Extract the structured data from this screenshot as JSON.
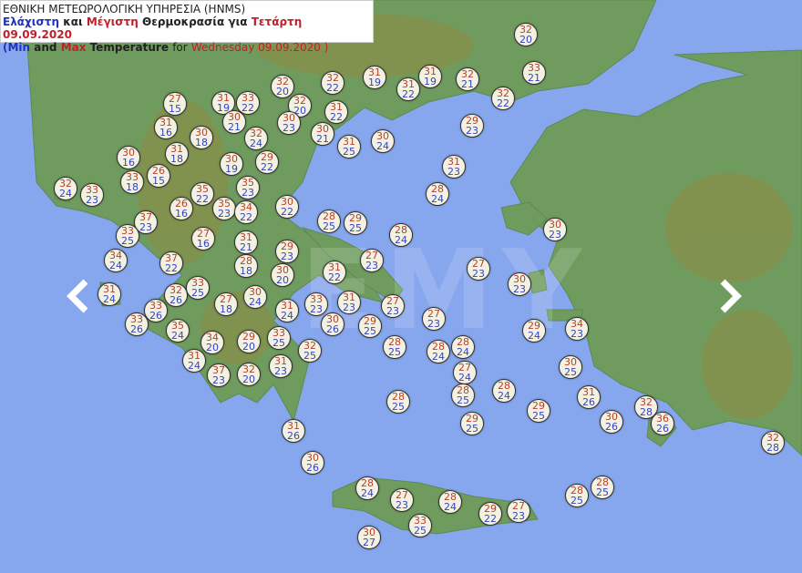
{
  "header": {
    "agency": "ΕΘΝΙΚΗ ΜΕΤΕΩΡΟΛΟΓΙΚΗ ΥΠΗΡΕΣΙΑ (HNMS)",
    "gr_min": "Ελάχιστη",
    "gr_and": "και",
    "gr_max": "Μέγιστη",
    "gr_temp": "Θερμοκρασία για",
    "gr_date": "Τετάρτη 09.09.2020",
    "en_open": "(",
    "en_min": "Min",
    "en_and": "and",
    "en_max": "Max",
    "en_temp": "Temperature",
    "en_for": "for",
    "en_date": "Wednesday 09.09.2020 )"
  },
  "watermark": "EMY",
  "colors": {
    "sea": "#86a6ee",
    "land": "#6f9c5e",
    "max_text": "#b8402c",
    "min_text": "#3544c2"
  },
  "navigation": {
    "prev_icon": "chevron-left-icon",
    "next_icon": "chevron-right-icon"
  },
  "markers": [
    {
      "max": "32",
      "min": "20"
    },
    {
      "max": "32",
      "min": "20"
    },
    {
      "max": "32",
      "min": "22"
    },
    {
      "max": "31",
      "min": "19"
    },
    {
      "max": "31",
      "min": "22"
    },
    {
      "max": "31",
      "min": "19"
    },
    {
      "max": "32",
      "min": "21"
    },
    {
      "max": "33",
      "min": "21"
    },
    {
      "max": "32",
      "min": "22"
    },
    {
      "max": "27",
      "min": "15"
    },
    {
      "max": "31",
      "min": "19"
    },
    {
      "max": "33",
      "min": "22"
    },
    {
      "max": "32",
      "min": "20"
    },
    {
      "max": "31",
      "min": "22"
    },
    {
      "max": "31",
      "min": "16"
    },
    {
      "max": "30",
      "min": "21"
    },
    {
      "max": "30",
      "min": "23"
    },
    {
      "max": "30",
      "min": "21"
    },
    {
      "max": "29",
      "min": "23"
    },
    {
      "max": "30",
      "min": "18"
    },
    {
      "max": "32",
      "min": "24"
    },
    {
      "max": "30",
      "min": "24"
    },
    {
      "max": "31",
      "min": "25"
    },
    {
      "max": "30",
      "min": "16"
    },
    {
      "max": "31",
      "min": "18"
    },
    {
      "max": "30",
      "min": "19"
    },
    {
      "max": "29",
      "min": "22"
    },
    {
      "max": "31",
      "min": "23"
    },
    {
      "max": "33",
      "min": "18"
    },
    {
      "max": "26",
      "min": "15"
    },
    {
      "max": "32",
      "min": "24"
    },
    {
      "max": "33",
      "min": "23"
    },
    {
      "max": "35",
      "min": "22"
    },
    {
      "max": "35",
      "min": "23"
    },
    {
      "max": "28",
      "min": "24"
    },
    {
      "max": "30",
      "min": "22"
    },
    {
      "max": "26",
      "min": "16"
    },
    {
      "max": "35",
      "min": "23"
    },
    {
      "max": "34",
      "min": "22"
    },
    {
      "max": "28",
      "min": "25"
    },
    {
      "max": "29",
      "min": "25"
    },
    {
      "max": "30",
      "min": "23"
    },
    {
      "max": "37",
      "min": "23"
    },
    {
      "max": "33",
      "min": "25"
    },
    {
      "max": "27",
      "min": "16"
    },
    {
      "max": "28",
      "min": "24"
    },
    {
      "max": "31",
      "min": "21"
    },
    {
      "max": "29",
      "min": "23"
    },
    {
      "max": "34",
      "min": "24"
    },
    {
      "max": "37",
      "min": "22"
    },
    {
      "max": "27",
      "min": "23"
    },
    {
      "max": "27",
      "min": "23"
    },
    {
      "max": "28",
      "min": "18"
    },
    {
      "max": "30",
      "min": "20"
    },
    {
      "max": "31",
      "min": "22"
    },
    {
      "max": "30",
      "min": "23"
    },
    {
      "max": "31",
      "min": "24"
    },
    {
      "max": "32",
      "min": "26"
    },
    {
      "max": "33",
      "min": "25"
    },
    {
      "max": "30",
      "min": "24"
    },
    {
      "max": "27",
      "min": "18"
    },
    {
      "max": "33",
      "min": "23"
    },
    {
      "max": "31",
      "min": "23"
    },
    {
      "max": "27",
      "min": "23"
    },
    {
      "max": "33",
      "min": "26"
    },
    {
      "max": "31",
      "min": "24"
    },
    {
      "max": "33",
      "min": "26"
    },
    {
      "max": "27",
      "min": "23"
    },
    {
      "max": "30",
      "min": "26"
    },
    {
      "max": "29",
      "min": "25"
    },
    {
      "max": "29",
      "min": "24"
    },
    {
      "max": "34",
      "min": "23"
    },
    {
      "max": "35",
      "min": "24"
    },
    {
      "max": "34",
      "min": "20"
    },
    {
      "max": "29",
      "min": "20"
    },
    {
      "max": "33",
      "min": "25"
    },
    {
      "max": "28",
      "min": "25"
    },
    {
      "max": "28",
      "min": "24"
    },
    {
      "max": "28",
      "min": "24"
    },
    {
      "max": "32",
      "min": "25"
    },
    {
      "max": "31",
      "min": "24"
    },
    {
      "max": "31",
      "min": "23"
    },
    {
      "max": "30",
      "min": "25"
    },
    {
      "max": "27",
      "min": "24"
    },
    {
      "max": "37",
      "min": "23"
    },
    {
      "max": "32",
      "min": "20"
    },
    {
      "max": "28",
      "min": "24"
    },
    {
      "max": "31",
      "min": "26"
    },
    {
      "max": "28",
      "min": "25"
    },
    {
      "max": "28",
      "min": "25"
    },
    {
      "max": "29",
      "min": "25"
    },
    {
      "max": "32",
      "min": "28"
    },
    {
      "max": "30",
      "min": "26"
    },
    {
      "max": "36",
      "min": "26"
    },
    {
      "max": "29",
      "min": "25"
    },
    {
      "max": "31",
      "min": "26"
    },
    {
      "max": "32",
      "min": "28"
    },
    {
      "max": "30",
      "min": "26"
    },
    {
      "max": "28",
      "min": "24"
    },
    {
      "max": "28",
      "min": "25"
    },
    {
      "max": "27",
      "min": "23"
    },
    {
      "max": "28",
      "min": "24"
    },
    {
      "max": "28",
      "min": "25"
    },
    {
      "max": "29",
      "min": "22"
    },
    {
      "max": "27",
      "min": "23"
    },
    {
      "max": "33",
      "min": "25"
    },
    {
      "max": "30",
      "min": "27"
    }
  ]
}
